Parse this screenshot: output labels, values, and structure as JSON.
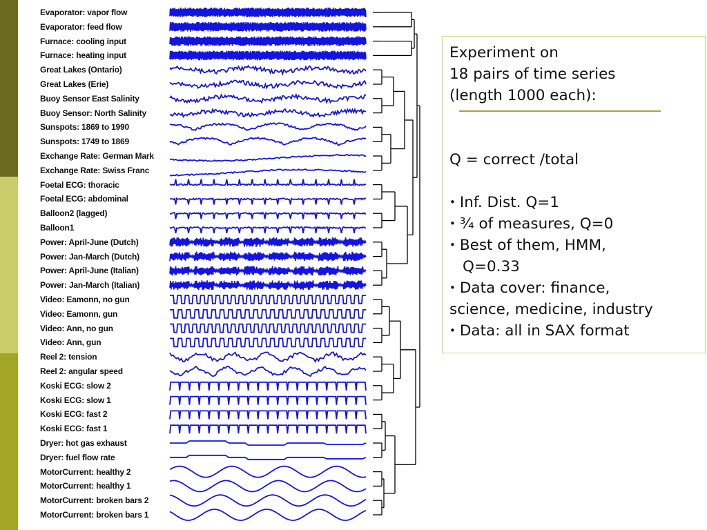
{
  "colors": {
    "band_dark": "#6b6b1f",
    "band_light": "#c9cc6a",
    "band_mid": "#a3a526",
    "wave": "#1414e0",
    "dendrogram": "#000000",
    "box_border": "#c9d27a",
    "underline": "#b3a03a"
  },
  "series_labels": [
    "Evaporator: vapor flow",
    "Evaporator: feed flow",
    "Furnace: cooling input",
    "Furnace: heating input",
    "Great Lakes (Ontario)",
    "Great Lakes (Erie)",
    "Buoy Sensor   East Salinity",
    "Buoy Sensor:  North Salinity",
    "Sunspots: 1869 to 1990",
    "Sunspots: 1749 to 1869",
    "Exchange Rate: German Mark",
    "Exchange Rate: Swiss Franc",
    "Foetal ECG: thoracic",
    "Foetal ECG: abdominal",
    "Balloon2 (lagged)",
    "Balloon1",
    "Power: April-June (Dutch)",
    "Power: Jan-March (Dutch)",
    "Power: April-June (Italian)",
    "Power: Jan-March (Italian)",
    "Video: Eamonn, no gun",
    "Video: Eamonn, gun",
    "Video: Ann, no gun",
    "Video: Ann, gun",
    "Reel 2: tension",
    "Reel 2: angular speed",
    "Koski ECG: slow 2",
    "Koski ECG: slow 1",
    "Koski ECG: fast 2",
    "Koski ECG: fast 1",
    "Dryer: hot gas exhaust",
    "Dryer: fuel flow rate",
    "MotorCurrent: healthy 2",
    "MotorCurrent: healthy 1",
    "MotorCurrent: broken bars 2",
    "MotorCurrent: broken bars 1"
  ],
  "wave_styles": [
    "dense",
    "dense",
    "dense",
    "dense",
    "noisy",
    "noisy",
    "noisy",
    "noisy",
    "hump",
    "hump",
    "drift",
    "drift",
    "spike",
    "spike-down",
    "spike-down",
    "spike-down",
    "burst",
    "burst",
    "burst",
    "burst",
    "square",
    "square",
    "square",
    "square",
    "jagged",
    "jagged",
    "ecg",
    "ecg",
    "ecg",
    "ecg",
    "step",
    "step",
    "sine",
    "sine",
    "sine",
    "sine"
  ],
  "textbox": {
    "title_line1": "Experiment on",
    "title_line2": "18 pairs of time series",
    "title_line3": "(length 1000 each):",
    "q_definition": "Q = correct /total",
    "bullets": [
      "Inf. Dist. Q=1",
      "¾ of measures, Q=0",
      "Best of them, HMM,",
      "Data cover: finance,",
      "Data: all in SAX format"
    ],
    "bullet3_continuation": "Q=0.33",
    "bullet4_continuation": "science, medicine, industry"
  }
}
